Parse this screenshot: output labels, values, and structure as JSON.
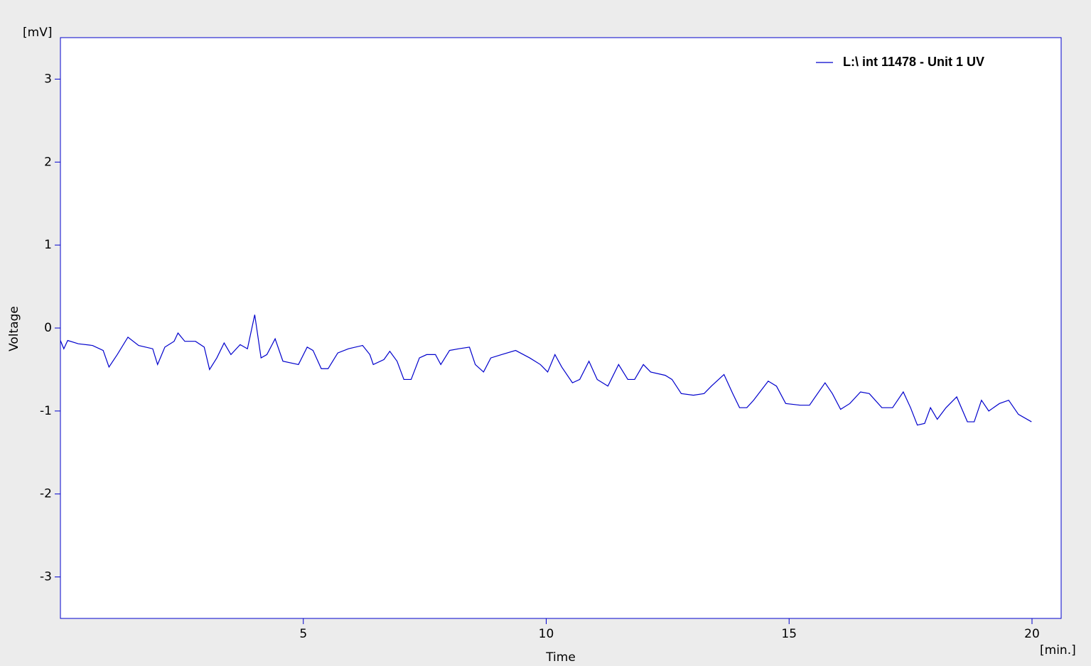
{
  "chart_data": {
    "type": "line",
    "x_label": "Time",
    "y_label": "Voltage",
    "x_unit": "[min.]",
    "y_unit": "[mV]",
    "xlim": [
      0,
      20.6
    ],
    "ylim": [
      -3.5,
      3.5
    ],
    "xticks": [
      5,
      10,
      15,
      20
    ],
    "yticks": [
      -3,
      -2,
      -1,
      0,
      1,
      2,
      3
    ],
    "grid": false,
    "legend_position": "upper-right",
    "x": [
      0,
      0.07,
      0.15,
      0.37,
      0.66,
      0.88,
      1.0,
      1.17,
      1.39,
      1.61,
      1.9,
      2.0,
      2.15,
      2.34,
      2.42,
      2.56,
      2.78,
      2.96,
      3.07,
      3.22,
      3.37,
      3.51,
      3.7,
      3.85,
      4.0,
      4.13,
      4.25,
      4.42,
      4.58,
      4.9,
      5.08,
      5.2,
      5.37,
      5.51,
      5.71,
      5.93,
      6.22,
      6.37,
      6.44,
      6.66,
      6.78,
      6.93,
      7.07,
      7.22,
      7.39,
      7.54,
      7.72,
      7.83,
      8.01,
      8.2,
      8.42,
      8.54,
      8.71,
      8.86,
      9.08,
      9.37,
      9.66,
      9.88,
      10.03,
      10.18,
      10.32,
      10.54,
      10.69,
      10.88,
      11.05,
      11.27,
      11.49,
      11.68,
      11.82,
      12.0,
      12.15,
      12.45,
      12.59,
      12.78,
      13.03,
      13.25,
      13.4,
      13.66,
      13.84,
      13.98,
      14.13,
      14.27,
      14.57,
      14.74,
      14.93,
      15.23,
      15.42,
      15.74,
      15.89,
      16.06,
      16.25,
      16.47,
      16.65,
      16.91,
      17.13,
      17.35,
      17.5,
      17.64,
      17.79,
      17.91,
      18.05,
      18.23,
      18.45,
      18.67,
      18.81,
      18.96,
      19.11,
      19.33,
      19.52,
      19.72,
      19.99
    ],
    "series": [
      {
        "name": "L:\\ int 11478 - Unit 1 UV",
        "color": "#0000cc",
        "values": [
          -0.15,
          -0.25,
          -0.15,
          -0.19,
          -0.21,
          -0.27,
          -0.47,
          -0.32,
          -0.11,
          -0.21,
          -0.25,
          -0.44,
          -0.23,
          -0.16,
          -0.06,
          -0.16,
          -0.16,
          -0.23,
          -0.5,
          -0.36,
          -0.18,
          -0.32,
          -0.2,
          -0.25,
          0.16,
          -0.36,
          -0.32,
          -0.13,
          -0.4,
          -0.44,
          -0.23,
          -0.27,
          -0.49,
          -0.49,
          -0.3,
          -0.25,
          -0.21,
          -0.32,
          -0.44,
          -0.38,
          -0.28,
          -0.4,
          -0.62,
          -0.62,
          -0.36,
          -0.32,
          -0.32,
          -0.44,
          -0.27,
          -0.25,
          -0.23,
          -0.44,
          -0.53,
          -0.36,
          -0.32,
          -0.27,
          -0.36,
          -0.44,
          -0.53,
          -0.32,
          -0.47,
          -0.66,
          -0.62,
          -0.4,
          -0.62,
          -0.7,
          -0.44,
          -0.62,
          -0.62,
          -0.44,
          -0.53,
          -0.57,
          -0.62,
          -0.79,
          -0.81,
          -0.79,
          -0.7,
          -0.56,
          -0.79,
          -0.96,
          -0.96,
          -0.87,
          -0.64,
          -0.7,
          -0.91,
          -0.93,
          -0.93,
          -0.66,
          -0.79,
          -0.98,
          -0.91,
          -0.77,
          -0.79,
          -0.96,
          -0.96,
          -0.77,
          -0.96,
          -1.17,
          -1.15,
          -0.96,
          -1.1,
          -0.96,
          -0.83,
          -1.13,
          -1.13,
          -0.87,
          -1.0,
          -0.91,
          -0.87,
          -1.04,
          -1.13
        ]
      }
    ]
  }
}
